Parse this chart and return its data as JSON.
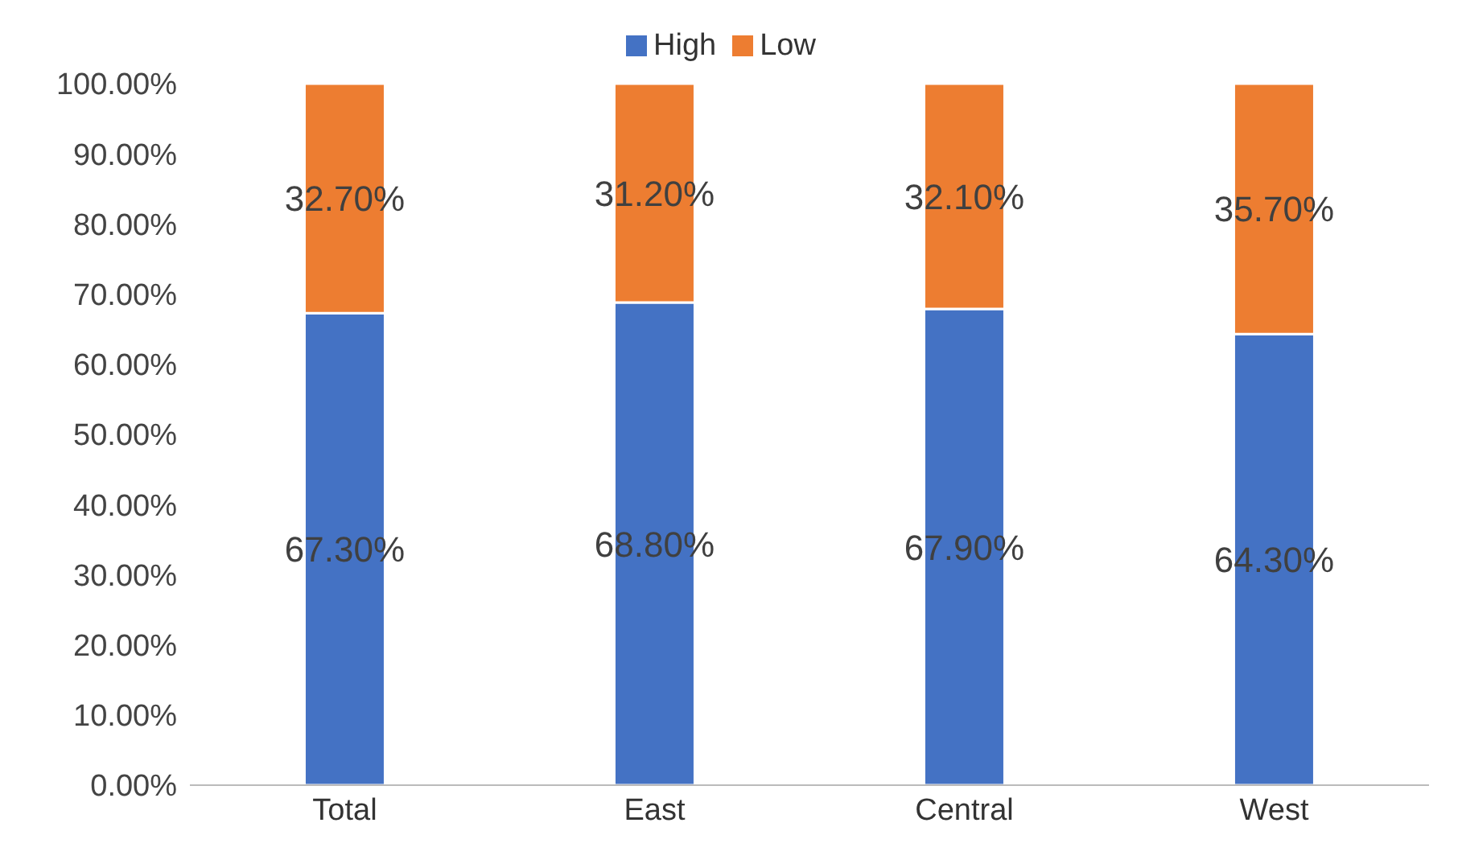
{
  "chart_data": {
    "type": "bar",
    "stacked": true,
    "categories": [
      "Total",
      "East",
      "Central",
      "West"
    ],
    "series": [
      {
        "name": "High",
        "color": "#4472c4",
        "values": [
          67.3,
          68.8,
          67.9,
          64.3
        ],
        "value_labels": [
          "67.30%",
          "68.80%",
          "67.90%",
          "64.30%"
        ]
      },
      {
        "name": "Low",
        "color": "#ed7d31",
        "values": [
          32.7,
          31.2,
          32.1,
          35.7
        ],
        "value_labels": [
          "32.70%",
          "31.20%",
          "32.10%",
          "35.70%"
        ]
      }
    ],
    "ylim": [
      0,
      100
    ],
    "yticks": [
      {
        "value": 0,
        "label": "0.00%"
      },
      {
        "value": 10,
        "label": "10.00%"
      },
      {
        "value": 20,
        "label": "20.00%"
      },
      {
        "value": 30,
        "label": "30.00%"
      },
      {
        "value": 40,
        "label": "40.00%"
      },
      {
        "value": 50,
        "label": "50.00%"
      },
      {
        "value": 60,
        "label": "60.00%"
      },
      {
        "value": 70,
        "label": "70.00%"
      },
      {
        "value": 80,
        "label": "80.00%"
      },
      {
        "value": 90,
        "label": "90.00%"
      },
      {
        "value": 100,
        "label": "100.00%"
      }
    ],
    "grid": false,
    "legend": "top"
  }
}
